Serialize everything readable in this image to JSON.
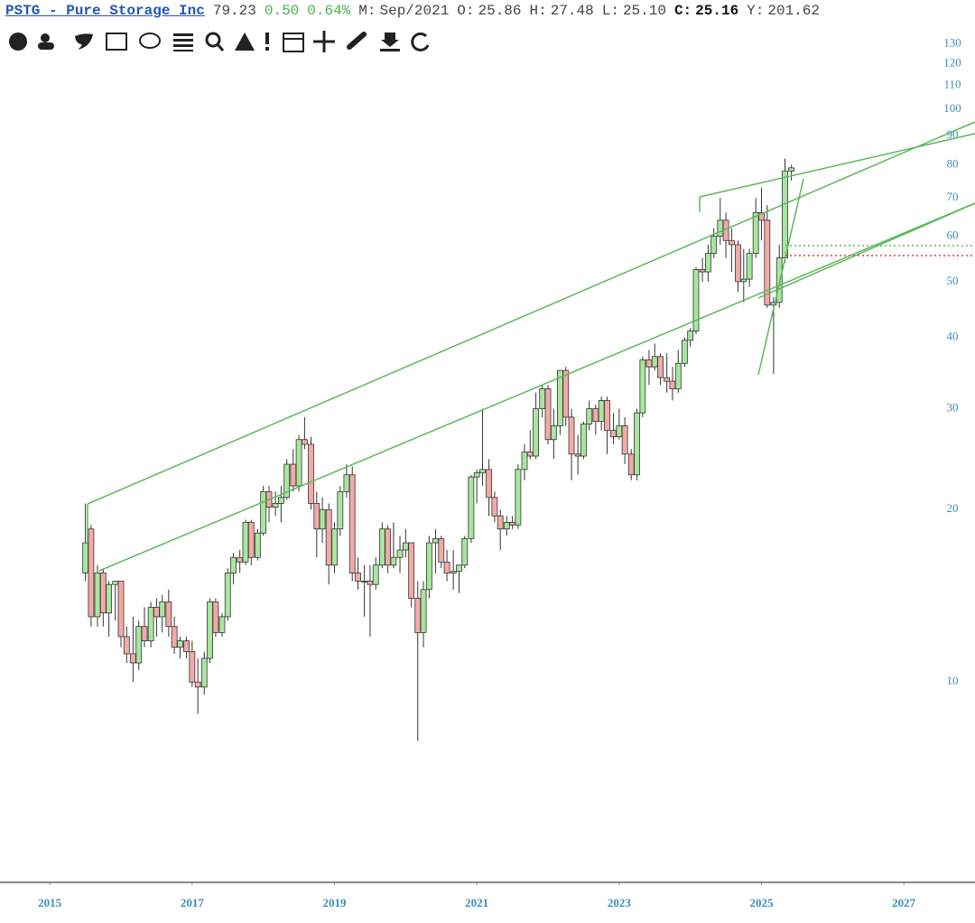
{
  "header": {
    "symbol": "PSTG - Pure Storage Inc",
    "price": "79.23",
    "change": "0.50",
    "change_pct": "0.64%",
    "fields": [
      {
        "label": "M:",
        "value": "Sep/2021"
      },
      {
        "label": "O:",
        "value": "25.86"
      },
      {
        "label": "H:",
        "value": "27.48"
      },
      {
        "label": "L:",
        "value": "25.10"
      },
      {
        "label": "C:",
        "value": "25.16"
      },
      {
        "label": "Y:",
        "value": "201.62"
      }
    ]
  },
  "chart_data": {
    "type": "candlestick",
    "log_scale": true,
    "up_color": "#a8e6a0",
    "down_color": "#f2aaa8",
    "xlim": [
      2014.3,
      2028
    ],
    "xticks": [
      2015,
      2017,
      2019,
      2021,
      2023,
      2025,
      2027
    ],
    "ylim": [
      4.47,
      136.6
    ],
    "yticks": [
      10,
      20,
      30,
      40,
      50,
      60,
      70,
      80,
      90,
      100,
      110,
      120,
      130
    ],
    "x": [
      2015.5,
      2015.58,
      2015.67,
      2015.75,
      2015.83,
      2015.92,
      2016,
      2016.08,
      2016.17,
      2016.25,
      2016.33,
      2016.42,
      2016.5,
      2016.58,
      2016.67,
      2016.75,
      2016.83,
      2016.92,
      2017,
      2017.08,
      2017.17,
      2017.25,
      2017.33,
      2017.42,
      2017.5,
      2017.58,
      2017.67,
      2017.75,
      2017.83,
      2017.92,
      2018,
      2018.08,
      2018.17,
      2018.25,
      2018.33,
      2018.42,
      2018.5,
      2018.58,
      2018.67,
      2018.75,
      2018.83,
      2018.92,
      2019,
      2019.08,
      2019.17,
      2019.25,
      2019.33,
      2019.42,
      2019.5,
      2019.58,
      2019.67,
      2019.75,
      2019.83,
      2019.92,
      2020,
      2020.08,
      2020.17,
      2020.25,
      2020.33,
      2020.42,
      2020.5,
      2020.58,
      2020.67,
      2020.75,
      2020.83,
      2020.92,
      2021,
      2021.08,
      2021.17,
      2021.25,
      2021.33,
      2021.42,
      2021.5,
      2021.58,
      2021.67,
      2021.75,
      2021.83,
      2021.92,
      2022,
      2022.08,
      2022.17,
      2022.25,
      2022.33,
      2022.42,
      2022.5,
      2022.58,
      2022.67,
      2022.75,
      2022.83,
      2022.92,
      2023,
      2023.08,
      2023.17,
      2023.25,
      2023.33,
      2023.42,
      2023.5,
      2023.58,
      2023.67,
      2023.75,
      2023.83,
      2023.92,
      2024,
      2024.08,
      2024.17,
      2024.25,
      2024.33,
      2024.42,
      2024.5,
      2024.58,
      2024.67,
      2024.75,
      2024.83,
      2024.92,
      2025,
      2025.08,
      2025.17,
      2025.25,
      2025.33,
      2025.42
    ],
    "open": [
      15.5,
      18.5,
      13,
      15.5,
      13.2,
      14.8,
      15,
      12,
      11.2,
      10.8,
      12.5,
      11.8,
      13.5,
      13,
      13.8,
      12.5,
      11.5,
      11.8,
      11.3,
      10,
      9.8,
      11,
      13.8,
      12.2,
      13,
      15.5,
      16.5,
      16.2,
      19,
      16.5,
      18.2,
      21.5,
      20.2,
      20.5,
      21,
      24,
      22,
      26.5,
      26,
      20.5,
      18.5,
      20,
      16,
      18.5,
      21.5,
      23,
      15.5,
      15,
      15,
      14.8,
      16,
      18.5,
      16,
      16.5,
      17,
      17.5,
      14,
      12.2,
      14.5,
      17.5,
      17.8,
      16.2,
      15.5,
      15.6,
      16,
      17.8,
      22.8,
      23.2,
      23.5,
      21,
      19.5,
      18.5,
      19,
      18.8,
      23.5,
      25.2,
      24.8,
      30,
      32.5,
      26.5,
      28,
      35,
      29,
      25,
      24.8,
      28.2,
      30,
      28.5,
      31,
      27.5,
      26.8,
      28,
      25,
      23,
      29.5,
      36.5,
      35.5,
      37,
      34,
      33.5,
      32.5,
      36,
      39.5,
      41,
      52.5,
      52,
      56,
      60,
      64,
      59,
      58,
      50,
      50.5,
      56,
      66,
      64,
      45.5,
      46,
      55,
      78
    ],
    "high": [
      20.5,
      18.8,
      16,
      15.8,
      15,
      15,
      15,
      12.5,
      13,
      12.8,
      13.5,
      13.8,
      14,
      14.2,
      14.5,
      13,
      12,
      12,
      11.8,
      11,
      11.3,
      14,
      14,
      13.2,
      15.8,
      16.8,
      17,
      19.2,
      19.2,
      18.5,
      22,
      22,
      21.5,
      22,
      24.5,
      25.5,
      27,
      29,
      26.8,
      21.5,
      21,
      20.5,
      19,
      22,
      24,
      23.8,
      16.5,
      16,
      16,
      16.5,
      19,
      18.8,
      19,
      18,
      18.5,
      17.5,
      15,
      15,
      18,
      18.5,
      18,
      17,
      17,
      16,
      18,
      23,
      23.5,
      30,
      24.5,
      21.5,
      20,
      19.5,
      19.5,
      24,
      26,
      27.5,
      32,
      33,
      33,
      30,
      35,
      35.5,
      30,
      27,
      28.5,
      31,
      30.5,
      31.5,
      31.5,
      29.5,
      30,
      29,
      25.5,
      30,
      37,
      38,
      39,
      37.5,
      37.5,
      35.5,
      38,
      40,
      41.5,
      53,
      55,
      58,
      62,
      70,
      66,
      62,
      59,
      57,
      57,
      70,
      73,
      68,
      47,
      58,
      82,
      80
    ],
    "low": [
      15,
      12.5,
      12.5,
      12.5,
      12,
      12.8,
      11.5,
      10.8,
      10,
      10.5,
      11.5,
      11.5,
      12,
      12.2,
      12,
      11.2,
      11,
      11,
      9.8,
      8.8,
      9.5,
      10.8,
      12,
      12,
      12.8,
      14.8,
      15.5,
      16,
      16,
      16.3,
      18,
      19,
      19.5,
      19,
      20.8,
      21.5,
      21.5,
      25.5,
      20,
      16.5,
      17.5,
      14.8,
      15.5,
      18,
      21,
      15,
      14.5,
      13,
      12,
      14.5,
      15.8,
      15.5,
      15.8,
      15.5,
      16.5,
      13.5,
      7.9,
      11.5,
      14,
      15.5,
      15.8,
      15,
      14.5,
      14.3,
      15.8,
      17.5,
      20.5,
      22,
      19.5,
      19,
      17,
      18,
      18.5,
      18.5,
      22.5,
      24.5,
      24.5,
      29,
      26,
      24.5,
      27,
      28,
      22.5,
      23,
      24.5,
      27.5,
      27,
      27.5,
      25,
      26,
      26.5,
      24,
      22.5,
      22.5,
      29,
      33,
      35,
      33,
      32,
      31,
      32,
      35.5,
      38.5,
      40.5,
      50,
      50,
      55,
      58,
      55,
      52,
      48,
      46,
      49,
      55,
      59,
      45,
      34.5,
      45,
      54,
      75
    ],
    "close": [
      17.5,
      13,
      15.5,
      13.2,
      14.8,
      15,
      12,
      11.2,
      10.8,
      12.5,
      11.8,
      13.5,
      13,
      13.8,
      12.5,
      11.5,
      11.8,
      11.3,
      10,
      9.8,
      11,
      13.8,
      12.2,
      13,
      15.5,
      16.5,
      16.2,
      19,
      16.5,
      18.2,
      21.5,
      20.2,
      20.5,
      21,
      24,
      22,
      26.5,
      26,
      20.5,
      18.5,
      20,
      16,
      18.5,
      21.5,
      23,
      15.5,
      15,
      15,
      14.8,
      16,
      18.5,
      16,
      16.5,
      17,
      17.5,
      14,
      12.2,
      14.5,
      17.5,
      17.8,
      16.2,
      15.5,
      15.6,
      16,
      17.8,
      22.8,
      23.2,
      23.5,
      21,
      19.5,
      18.5,
      19,
      18.8,
      23.5,
      25.2,
      24.8,
      30,
      32.5,
      26.5,
      28,
      35,
      29,
      25,
      24.8,
      28.2,
      30,
      28.5,
      31,
      27.5,
      26.8,
      28,
      25,
      23,
      29.5,
      36.5,
      35.5,
      37,
      34,
      33.5,
      32.5,
      36,
      39.5,
      41,
      52.5,
      52,
      56,
      60,
      64,
      59,
      58,
      50,
      50.5,
      56,
      66,
      64,
      45.5,
      46,
      55,
      78,
      79
    ]
  }
}
